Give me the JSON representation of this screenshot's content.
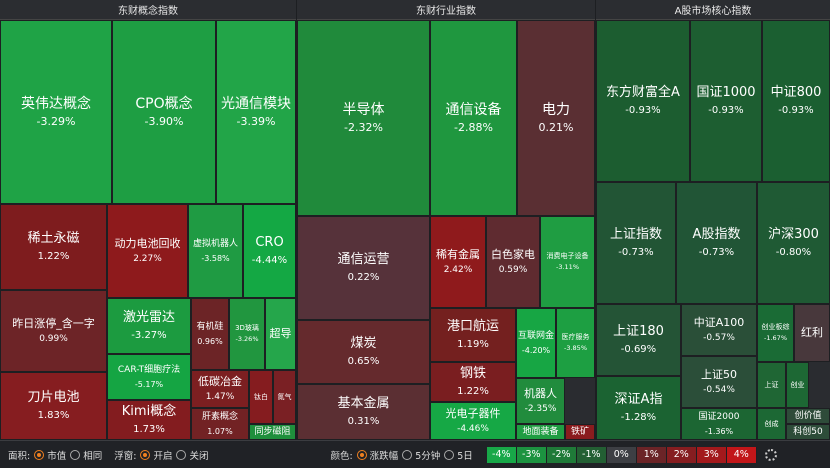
{
  "panels": [
    {
      "title": "东财概念指数",
      "tiles": [
        {
          "name": "英伟达概念",
          "pct": "-3.29%",
          "color": "#1fa346",
          "size": "s1"
        },
        {
          "name": "CPO概念",
          "pct": "-3.90%",
          "color": "#1e9e43",
          "size": "s1"
        },
        {
          "name": "光通信模块",
          "pct": "-3.39%",
          "color": "#22a548",
          "size": "s1"
        },
        {
          "name": "稀土永磁",
          "pct": "1.22%",
          "color": "#7e1c1e",
          "size": "s2"
        },
        {
          "name": "动力电池回收",
          "pct": "2.27%",
          "color": "#8e1a1c",
          "size": "s3"
        },
        {
          "name": "虚拟机器人",
          "pct": "-3.58%",
          "color": "#1f9b43",
          "size": "s4"
        },
        {
          "name": "CRO",
          "pct": "-4.44%",
          "color": "#14a844",
          "size": "s2"
        },
        {
          "name": "昨日涨停_含一字",
          "pct": "0.99%",
          "color": "#6d2427",
          "size": "s3"
        },
        {
          "name": "激光雷达",
          "pct": "-3.27%",
          "color": "#1c9b40",
          "size": "s2"
        },
        {
          "name": "有机硅",
          "pct": "0.96%",
          "color": "#6c2426",
          "size": "s4"
        },
        {
          "name": "3D玻璃",
          "pct": "-3.26%",
          "color": "#21963f",
          "size": "s5"
        },
        {
          "name": "超导",
          "pct": "",
          "color": "#25a64b",
          "size": "s3"
        },
        {
          "name": "CAR-T细胞疗法",
          "pct": "-5.17%",
          "color": "#15a543",
          "size": "s4"
        },
        {
          "name": "刀片电池",
          "pct": "1.83%",
          "color": "#861d20",
          "size": "s2"
        },
        {
          "name": "低碳冶金",
          "pct": "1.47%",
          "color": "#7c1f21",
          "size": "s3"
        },
        {
          "name": "钛白",
          "pct": "",
          "color": "#851c1f",
          "size": "s5"
        },
        {
          "name": "氮气",
          "pct": "",
          "color": "#7a2024",
          "size": "s5"
        },
        {
          "name": "Kimi概念",
          "pct": "1.73%",
          "color": "#831c1f",
          "size": "s2"
        },
        {
          "name": "肝素概念",
          "pct": "1.07%",
          "color": "#722224",
          "size": "s4"
        },
        {
          "name": "同步磁阻",
          "pct": "",
          "color": "#1f8f3c",
          "size": "s4"
        }
      ]
    },
    {
      "title": "东财行业指数",
      "tiles": [
        {
          "name": "半导体",
          "pct": "-2.32%",
          "color": "#208a3b",
          "size": "s1"
        },
        {
          "name": "通信设备",
          "pct": "-2.88%",
          "color": "#1f973f",
          "size": "s1"
        },
        {
          "name": "电力",
          "pct": "0.21%",
          "color": "#5a2f33",
          "size": "s1"
        },
        {
          "name": "通信运营",
          "pct": "0.22%",
          "color": "#56323a",
          "size": "s2"
        },
        {
          "name": "稀有金属",
          "pct": "2.42%",
          "color": "#8f1a1c",
          "size": "s3"
        },
        {
          "name": "白色家电",
          "pct": "0.59%",
          "color": "#5f2b30",
          "size": "s3"
        },
        {
          "name": "消费电子设备",
          "pct": "-3.11%",
          "color": "#1f9d42",
          "size": "s5"
        },
        {
          "name": "煤炭",
          "pct": "0.65%",
          "color": "#652a2d",
          "size": "s2"
        },
        {
          "name": "港口航运",
          "pct": "1.19%",
          "color": "#74201f",
          "size": "s2"
        },
        {
          "name": "互联网金",
          "pct": "-4.20%",
          "color": "#17a644",
          "size": "s4"
        },
        {
          "name": "医疗服务",
          "pct": "-3.85%",
          "color": "#1d9f42",
          "size": "s5"
        },
        {
          "name": "钢铁",
          "pct": "1.22%",
          "color": "#7a1e20",
          "size": "s2"
        },
        {
          "name": "基本金属",
          "pct": "0.31%",
          "color": "#5b2f33",
          "size": "s2"
        },
        {
          "name": "机器人",
          "pct": "-2.35%",
          "color": "#218c3d",
          "size": "s3"
        },
        {
          "name": "光电子器件",
          "pct": "-4.46%",
          "color": "#16a845",
          "size": "s3"
        },
        {
          "name": "地面装备",
          "pct": "",
          "color": "#1f9d42",
          "size": "s4"
        },
        {
          "name": "铁矿",
          "pct": "",
          "color": "#8a1c1e",
          "size": "s4"
        }
      ]
    },
    {
      "title": "A股市场核心指数",
      "tiles": [
        {
          "name": "东方财富全A",
          "pct": "-0.93%",
          "color": "#1c5d30",
          "size": "s2"
        },
        {
          "name": "国证1000",
          "pct": "-0.93%",
          "color": "#1d5e31",
          "size": "s2"
        },
        {
          "name": "中证800",
          "pct": "-0.93%",
          "color": "#1b5f31",
          "size": "s2"
        },
        {
          "name": "上证指数",
          "pct": "-0.73%",
          "color": "#225535",
          "size": "s2"
        },
        {
          "name": "A股指数",
          "pct": "-0.73%",
          "color": "#215536",
          "size": "s2"
        },
        {
          "name": "沪深300",
          "pct": "-0.80%",
          "color": "#1f5a34",
          "size": "s2"
        },
        {
          "name": "上证180",
          "pct": "-0.69%",
          "color": "#245436",
          "size": "s2"
        },
        {
          "name": "中证A100",
          "pct": "-0.57%",
          "color": "#2a4f38",
          "size": "s3"
        },
        {
          "name": "创业板综",
          "pct": "-1.67%",
          "color": "#1a6b35",
          "size": "s5"
        },
        {
          "name": "红利",
          "pct": "",
          "color": "#48383c",
          "size": "s3"
        },
        {
          "name": "上证50",
          "pct": "-0.54%",
          "color": "#2b4e39",
          "size": "s3"
        },
        {
          "name": "深证A指",
          "pct": "-1.28%",
          "color": "#1b6332",
          "size": "s2"
        },
        {
          "name": "上证",
          "pct": "",
          "color": "#1f6634",
          "size": "s5"
        },
        {
          "name": "创业",
          "pct": "",
          "color": "#1d6834",
          "size": "s5"
        },
        {
          "name": "国证2000",
          "pct": "-1.36%",
          "color": "#1c6633",
          "size": "s4"
        },
        {
          "name": "创成",
          "pct": "",
          "color": "#1c6834",
          "size": "s5"
        },
        {
          "name": "创价值",
          "pct": "",
          "color": "#2e4b39",
          "size": "s4"
        },
        {
          "name": "科创50",
          "pct": "",
          "color": "#2d4c39",
          "size": "s4"
        }
      ]
    }
  ],
  "bottom": {
    "area_label": "面积:",
    "area_opts": [
      "市值",
      "相同"
    ],
    "area_sel": 0,
    "float_label": "浮窗:",
    "float_opts": [
      "开启",
      "关闭"
    ],
    "float_sel": 0,
    "color_label": "颜色:",
    "color_opts": [
      "涨跌幅",
      "5分钟",
      "5日"
    ],
    "color_sel": 0,
    "legend": [
      {
        "label": "-4%",
        "color": "#18a848"
      },
      {
        "label": "-3%",
        "color": "#1c9340"
      },
      {
        "label": "-2%",
        "color": "#1f7a38"
      },
      {
        "label": "-1%",
        "color": "#235f33"
      },
      {
        "label": "0%",
        "color": "#3d3f44"
      },
      {
        "label": "1%",
        "color": "#6b2427"
      },
      {
        "label": "2%",
        "color": "#861d20"
      },
      {
        "label": "3%",
        "color": "#a3191c"
      },
      {
        "label": "4%",
        "color": "#c21619"
      }
    ]
  }
}
